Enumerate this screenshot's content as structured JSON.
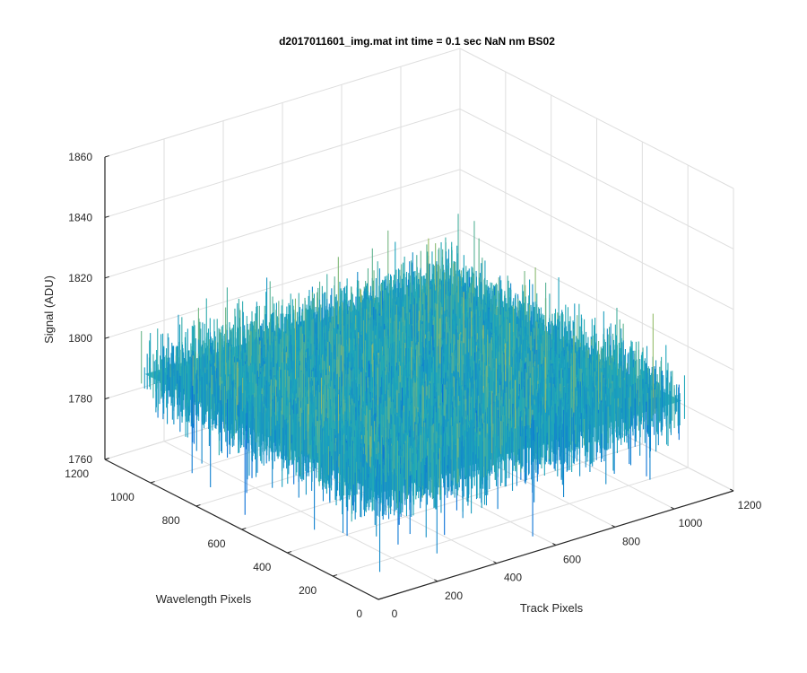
{
  "chart_data": {
    "type": "surface",
    "title": "d2017011601_img.mat int time = 0.1 sec  NaN nm BS02",
    "xlabel": "Track Pixels",
    "ylabel": "Wavelength Pixels",
    "zlabel": "Signal (ADU)",
    "xlim": [
      0,
      1200
    ],
    "ylim": [
      0,
      1200
    ],
    "zlim": [
      1760,
      1860
    ],
    "x_ticks": [
      "0",
      "200",
      "400",
      "600",
      "800",
      "1000",
      "1200"
    ],
    "y_ticks": [
      "0",
      "200",
      "400",
      "600",
      "800",
      "1000",
      "1200"
    ],
    "z_ticks": [
      "1760",
      "1780",
      "1800",
      "1820",
      "1840",
      "1860"
    ],
    "grid": true,
    "colormap": "parula",
    "surface": {
      "x_range": [
        0,
        1024
      ],
      "y_range": [
        0,
        1024
      ],
      "mean_signal": 1795,
      "approx_min": 1760,
      "approx_max": 1852
    },
    "colors": {
      "low": "#0a72d8",
      "mid": "#1ea8b8",
      "high": "#c8c44a",
      "axis": "#262626",
      "grid": "#dedede"
    }
  }
}
